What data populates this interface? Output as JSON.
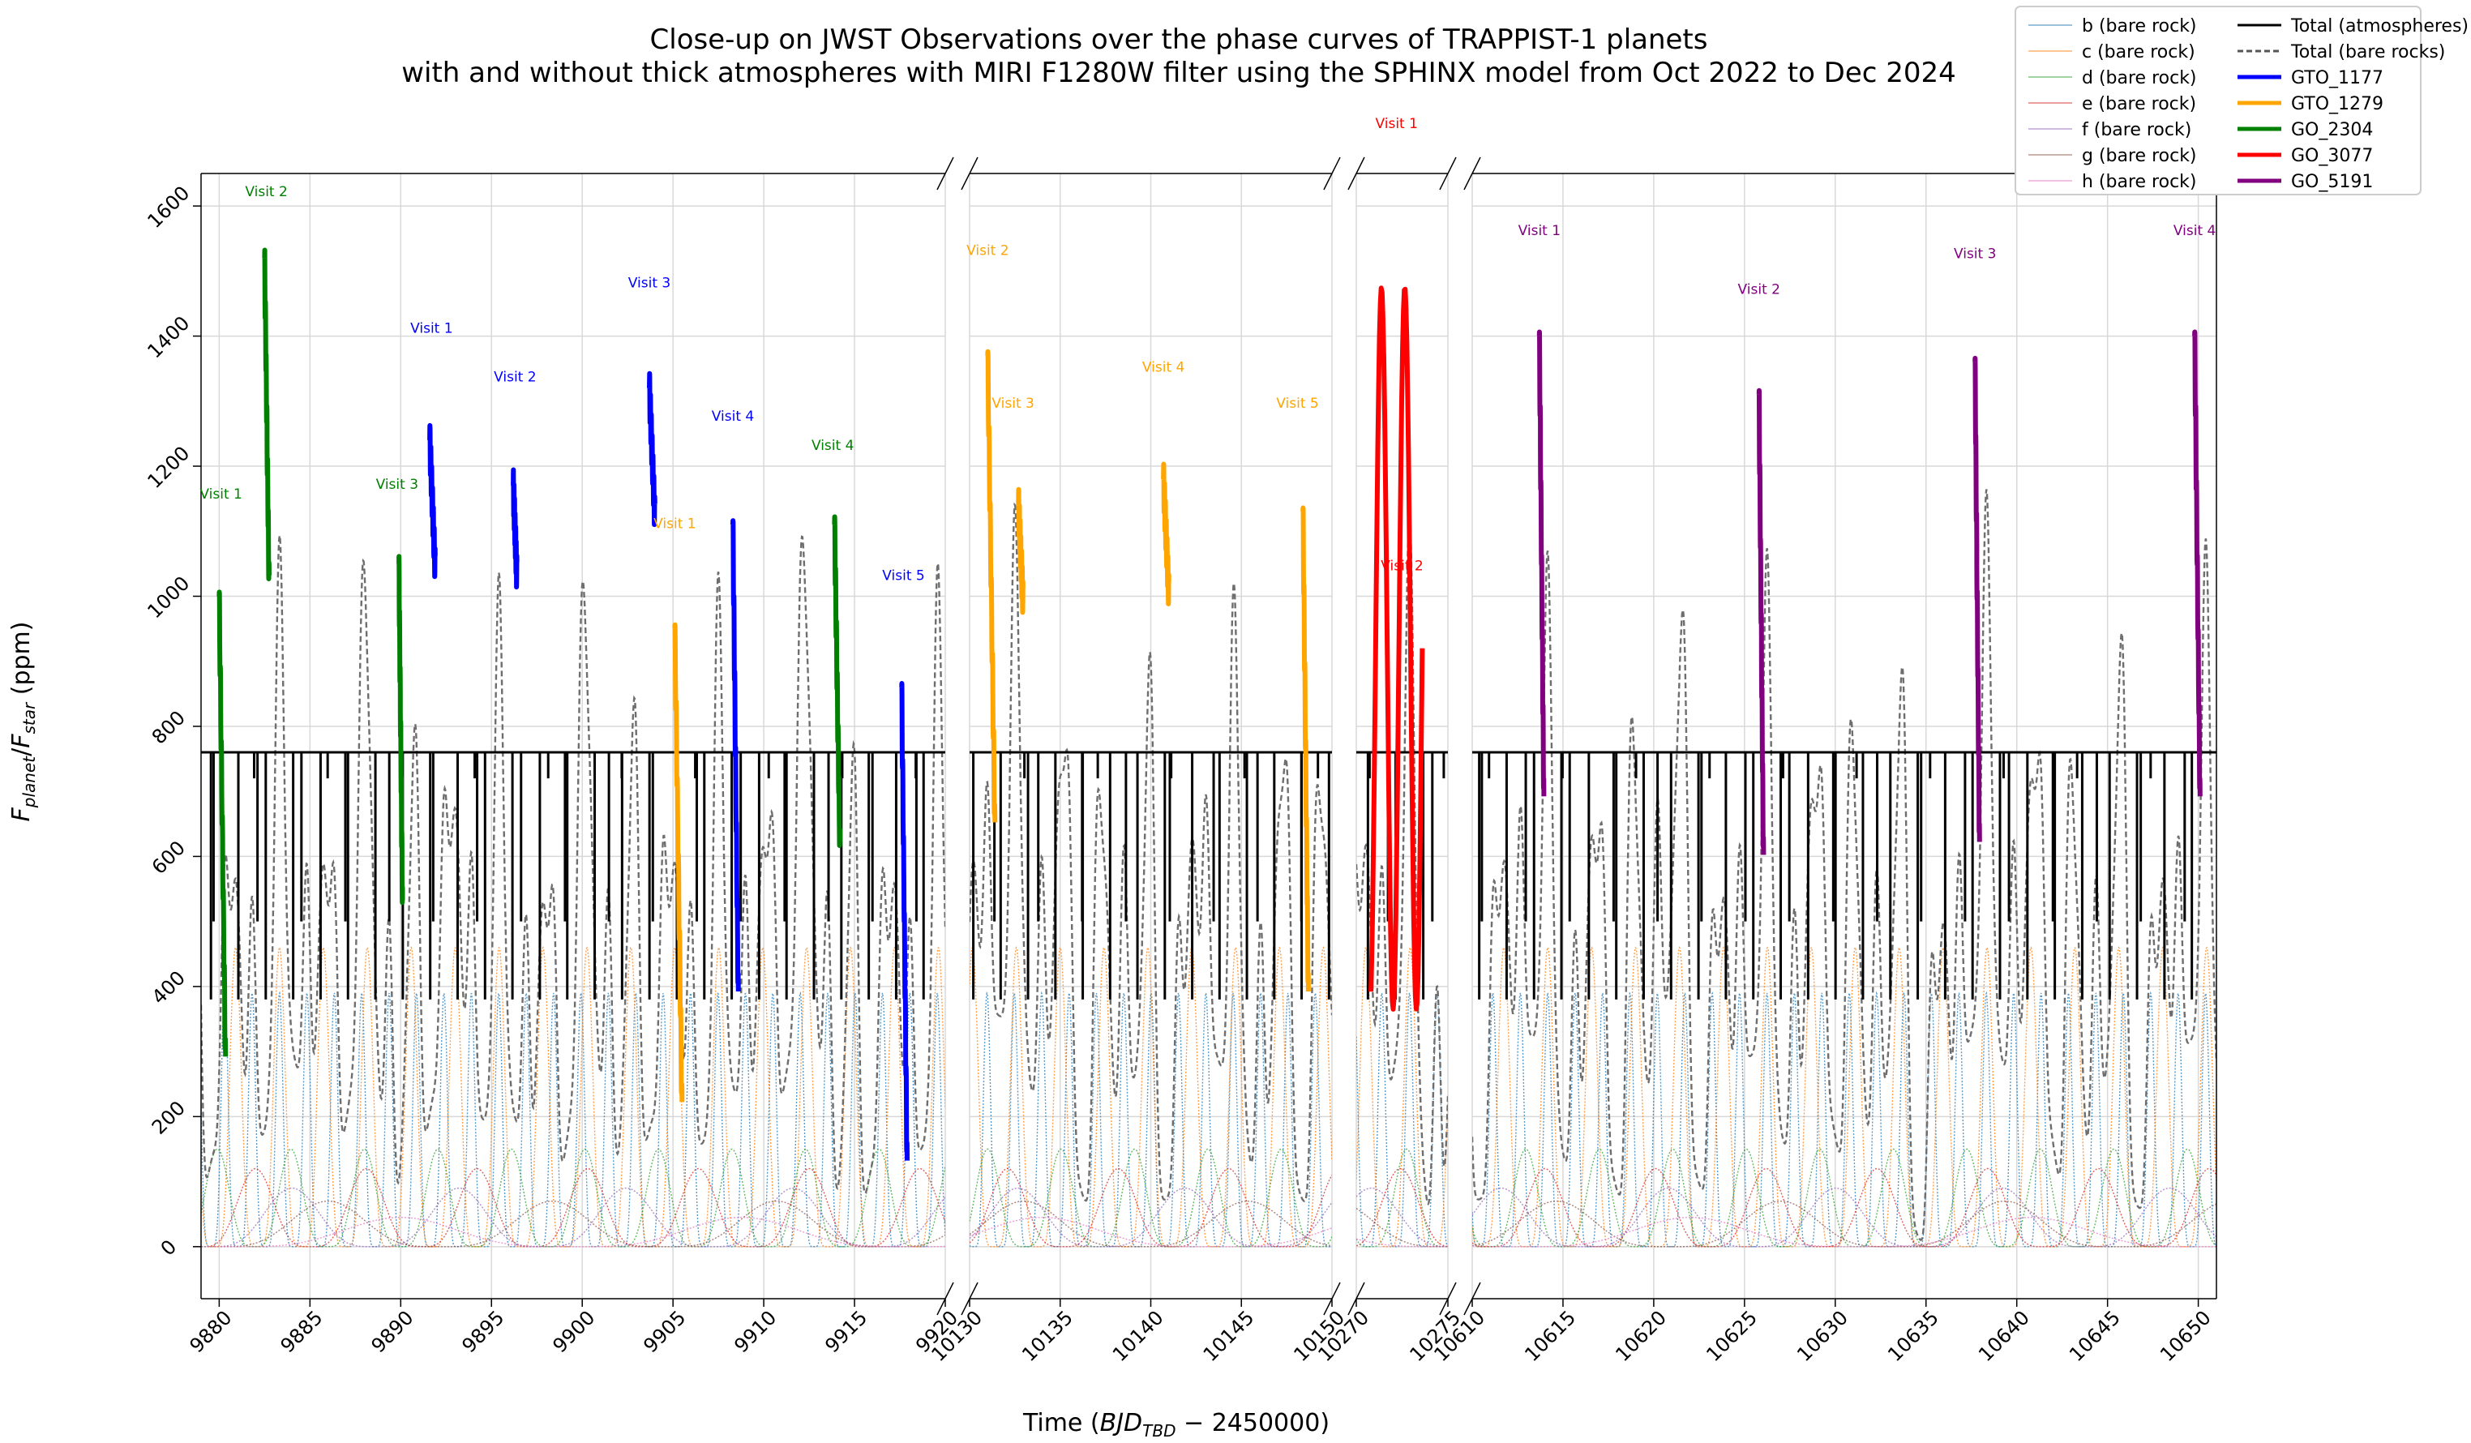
{
  "chart_data": {
    "type": "line",
    "title_line1": "Close-up on JWST Observations over the phase curves of TRAPPIST-1 planets",
    "title_line2": "with and without thick atmospheres with MIRI F1280W filter using the SPHINX model from Oct 2022 to Dec 2024",
    "xlabel_main": "Time (",
    "xlabel_italic": "BJD",
    "xlabel_sub": "TBD",
    "xlabel_tail": " − 2450000)",
    "ylabel_italic1": "F",
    "ylabel_sub1": "planet",
    "ylabel_slash": "/",
    "ylabel_italic2": "F",
    "ylabel_sub2": "star",
    "ylabel_unit": " (ppm)",
    "ylim": [
      -80,
      1650
    ],
    "yticks": [
      0,
      200,
      400,
      600,
      800,
      1000,
      1200,
      1400,
      1600
    ],
    "ytick_labels": [
      "0",
      "200",
      "400",
      "600",
      "800",
      "1000",
      "1200",
      "1400",
      "1600"
    ],
    "grid": true,
    "axis_break": true,
    "panels": [
      {
        "xlim": [
          9879,
          9920
        ],
        "xticks": [
          9880,
          9885,
          9890,
          9895,
          9900,
          9905,
          9910,
          9915,
          9920
        ],
        "xtick_labels": [
          "9880",
          "9885",
          "9890",
          "9895",
          "9900",
          "9905",
          "9910",
          "9915",
          "9920"
        ]
      },
      {
        "xlim": [
          10130,
          10150
        ],
        "xticks": [
          10130,
          10135,
          10140,
          10145,
          10150
        ],
        "xtick_labels": [
          "10130",
          "10135",
          "10140",
          "10145",
          "10150"
        ]
      },
      {
        "xlim": [
          10270,
          10275
        ],
        "xticks": [
          10270,
          10275
        ],
        "xtick_labels": [
          "10270",
          "10275"
        ]
      },
      {
        "xlim": [
          10610,
          10651
        ],
        "xticks": [
          10610,
          10615,
          10620,
          10625,
          10630,
          10635,
          10640,
          10645,
          10650
        ],
        "xtick_labels": [
          "10610",
          "10615",
          "10620",
          "10625",
          "10630",
          "10635",
          "10640",
          "10645",
          "10650"
        ]
      }
    ],
    "planets": [
      {
        "name": "b (bare rock)",
        "color": "#1f77b4",
        "period": 1.51,
        "amp": 390,
        "t0": 9880.3,
        "sharp": 3
      },
      {
        "name": "c (bare rock)",
        "color": "#ff7f0e",
        "period": 2.42,
        "amp": 460,
        "t0": 9880.9,
        "sharp": 3
      },
      {
        "name": "d (bare rock)",
        "color": "#2ca02c",
        "period": 4.05,
        "amp": 150,
        "t0": 9879.9,
        "sharp": 2
      },
      {
        "name": "e (bare rock)",
        "color": "#d62728",
        "period": 6.1,
        "amp": 120,
        "t0": 9882.0,
        "sharp": 2
      },
      {
        "name": "f (bare rock)",
        "color": "#9467bd",
        "period": 9.21,
        "amp": 90,
        "t0": 9884.0,
        "sharp": 2
      },
      {
        "name": "g (bare rock)",
        "color": "#8c564b",
        "period": 12.35,
        "amp": 70,
        "t0": 9886.0,
        "sharp": 2
      },
      {
        "name": "h (bare rock)",
        "color": "#e377c2",
        "period": 18.77,
        "amp": 45,
        "t0": 9890.0,
        "sharp": 2
      }
    ],
    "atmosphere_level": 760,
    "legend": {
      "placement": "top-right",
      "col1": [
        {
          "label": "b (bare rock)",
          "color": "#1f77b4",
          "style": "thin"
        },
        {
          "label": "c (bare rock)",
          "color": "#ff7f0e",
          "style": "thin"
        },
        {
          "label": "d (bare rock)",
          "color": "#2ca02c",
          "style": "thin"
        },
        {
          "label": "e (bare rock)",
          "color": "#d62728",
          "style": "thin"
        },
        {
          "label": "f (bare rock)",
          "color": "#9467bd",
          "style": "thin"
        },
        {
          "label": "g (bare rock)",
          "color": "#8c564b",
          "style": "thin"
        },
        {
          "label": "h (bare rock)",
          "color": "#e377c2",
          "style": "thin"
        }
      ],
      "col2": [
        {
          "label": "Total (atmospheres)",
          "color": "#000000",
          "style": "solid"
        },
        {
          "label": "Total (bare rocks)",
          "color": "#555555",
          "style": "dashed"
        },
        {
          "label": "GTO_1177",
          "color": "#0000ff",
          "style": "thick"
        },
        {
          "label": "GTO_1279",
          "color": "#ffa500",
          "style": "thick"
        },
        {
          "label": "GO_2304",
          "color": "#008000",
          "style": "thick"
        },
        {
          "label": "GO_3077",
          "color": "#ff0000",
          "style": "thick"
        },
        {
          "label": "GO_5191",
          "color": "#800080",
          "style": "thick"
        }
      ]
    },
    "programs": {
      "GTO_1177": "#0000ff",
      "GTO_1279": "#ffa500",
      "GO_2304": "#008000",
      "GO_3077": "#ff0000",
      "GO_5191": "#800080"
    },
    "observations": [
      {
        "program": "GO_2304",
        "start": 9880.0,
        "end": 9880.35,
        "hi": 1000,
        "lo": 270
      },
      {
        "program": "GO_2304",
        "start": 9882.5,
        "end": 9882.75,
        "hi": 1520,
        "lo": 1010
      },
      {
        "program": "GO_2304",
        "start": 9889.9,
        "end": 9890.1,
        "hi": 1050,
        "lo": 510
      },
      {
        "program": "GTO_1177",
        "start": 9891.6,
        "end": 9891.9,
        "hi": 1240,
        "lo": 1040
      },
      {
        "program": "GTO_1177",
        "start": 9896.2,
        "end": 9896.4,
        "hi": 1170,
        "lo": 1030
      },
      {
        "program": "GTO_1177",
        "start": 9903.7,
        "end": 9904.0,
        "hi": 1320,
        "lo": 1120
      },
      {
        "program": "GTO_1279",
        "start": 9905.1,
        "end": 9905.5,
        "hi": 950,
        "lo": 200
      },
      {
        "program": "GTO_1177",
        "start": 9908.3,
        "end": 9908.6,
        "hi": 1110,
        "lo": 370
      },
      {
        "program": "GO_2304",
        "start": 9913.9,
        "end": 9914.2,
        "hi": 1110,
        "lo": 600
      },
      {
        "program": "GTO_1177",
        "start": 9917.6,
        "end": 9917.9,
        "hi": 860,
        "lo": 110
      },
      {
        "program": "GTO_1279",
        "start": 10131.0,
        "end": 10131.4,
        "hi": 1370,
        "lo": 630
      },
      {
        "program": "GTO_1279",
        "start": 10132.7,
        "end": 10132.95,
        "hi": 1140,
        "lo": 990
      },
      {
        "program": "GTO_1279",
        "start": 10140.7,
        "end": 10141.0,
        "hi": 1180,
        "lo": 1000
      },
      {
        "program": "GTO_1279",
        "start": 10148.4,
        "end": 10148.7,
        "hi": 1130,
        "lo": 370
      },
      {
        "program": "GO_3077",
        "start": 10270.8,
        "end": 10273.6,
        "hi": 1475,
        "lo": 365,
        "wave": true
      },
      {
        "program": "GO_5191",
        "start": 10613.7,
        "end": 10613.95,
        "hi": 1400,
        "lo": 670
      },
      {
        "program": "GO_5191",
        "start": 10625.8,
        "end": 10626.05,
        "hi": 1310,
        "lo": 580
      },
      {
        "program": "GO_5191",
        "start": 10637.7,
        "end": 10637.95,
        "hi": 1360,
        "lo": 600
      },
      {
        "program": "GO_5191",
        "start": 10649.8,
        "end": 10650.1,
        "hi": 1400,
        "lo": 670
      }
    ],
    "annotations": [
      {
        "text": "Visit 1",
        "color": "#008000",
        "x": 9880.1,
        "y": 1150
      },
      {
        "text": "Visit 2",
        "color": "#008000",
        "x": 9882.6,
        "y": 1615
      },
      {
        "text": "Visit 3",
        "color": "#008000",
        "x": 9889.8,
        "y": 1165
      },
      {
        "text": "Visit 4",
        "color": "#008000",
        "x": 9913.8,
        "y": 1225
      },
      {
        "text": "Visit 1",
        "color": "#0000ff",
        "x": 9891.7,
        "y": 1405
      },
      {
        "text": "Visit 2",
        "color": "#0000ff",
        "x": 9896.3,
        "y": 1330
      },
      {
        "text": "Visit 3",
        "color": "#0000ff",
        "x": 9903.7,
        "y": 1475
      },
      {
        "text": "Visit 4",
        "color": "#0000ff",
        "x": 9908.3,
        "y": 1270
      },
      {
        "text": "Visit 5",
        "color": "#0000ff",
        "x": 9917.7,
        "y": 1025
      },
      {
        "text": "Visit 1",
        "color": "#ffa500",
        "x": 9905.1,
        "y": 1105
      },
      {
        "text": "Visit 2",
        "color": "#ffa500",
        "x": 10131.0,
        "y": 1525
      },
      {
        "text": "Visit 3",
        "color": "#ffa500",
        "x": 10132.4,
        "y": 1290
      },
      {
        "text": "Visit 4",
        "color": "#ffa500",
        "x": 10140.7,
        "y": 1345
      },
      {
        "text": "Visit 5",
        "color": "#ffa500",
        "x": 10148.1,
        "y": 1290
      },
      {
        "text": "Visit 1",
        "color": "#ff0000",
        "x": 10272.2,
        "y": 1720
      },
      {
        "text": "Visit 2",
        "color": "#ff0000",
        "x": 10272.5,
        "y": 1040
      },
      {
        "text": "Visit 1",
        "color": "#800080",
        "x": 10613.7,
        "y": 1555
      },
      {
        "text": "Visit 2",
        "color": "#800080",
        "x": 10625.8,
        "y": 1465
      },
      {
        "text": "Visit 3",
        "color": "#800080",
        "x": 10637.7,
        "y": 1520
      },
      {
        "text": "Visit 4",
        "color": "#800080",
        "x": 10649.8,
        "y": 1555
      }
    ]
  }
}
